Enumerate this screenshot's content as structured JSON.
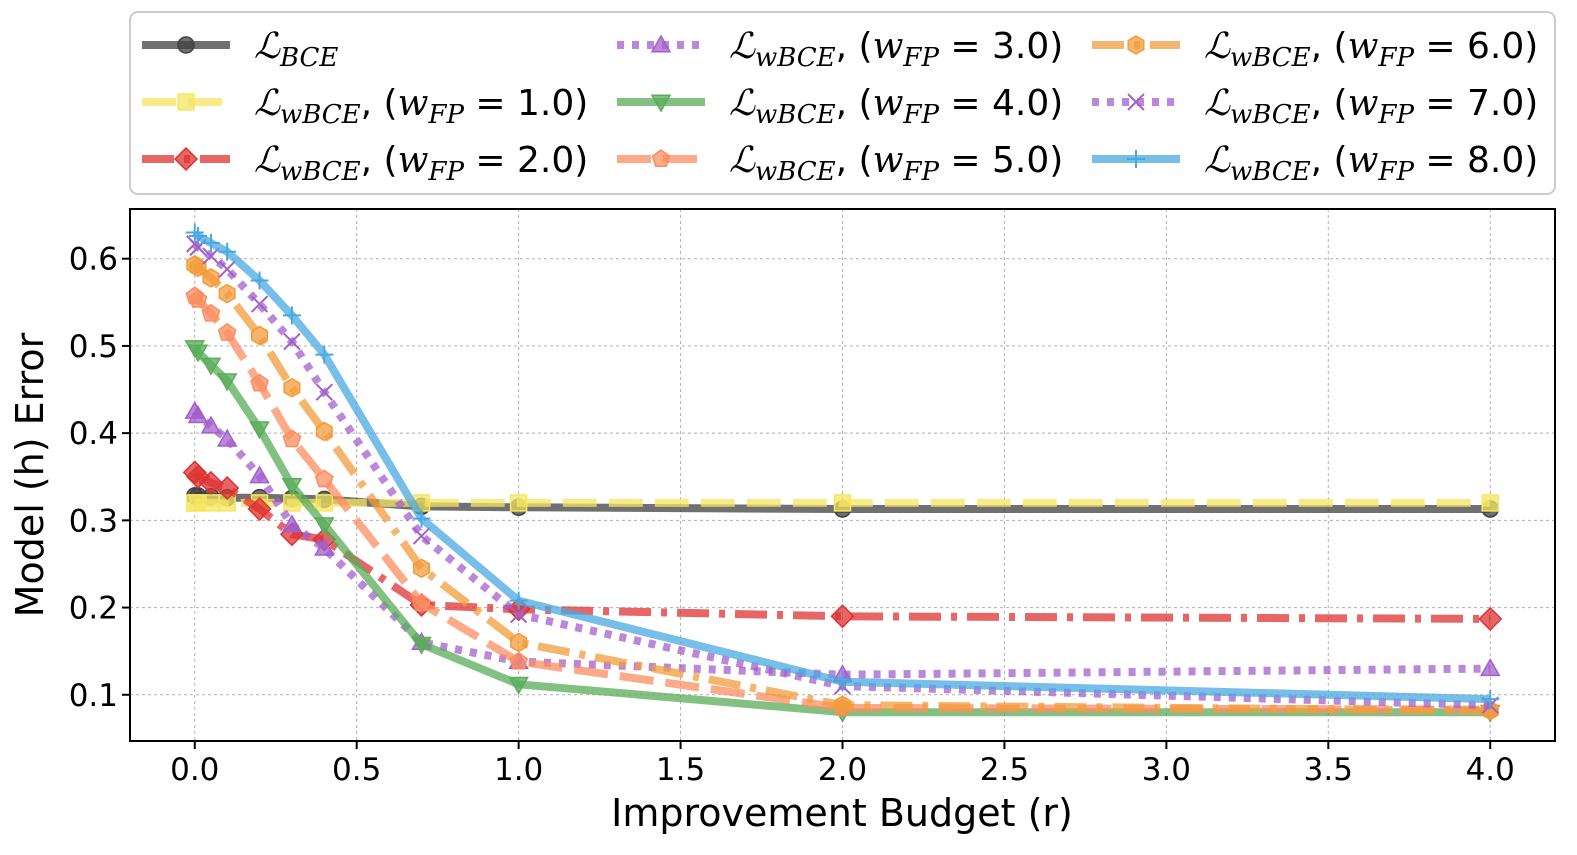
{
  "chart_data": {
    "type": "line",
    "title": "",
    "xlabel": "Improvement Budget (r)",
    "ylabel": "Model (h) Error",
    "xlim": [
      -0.2,
      4.2
    ],
    "ylim": [
      0.047,
      0.657
    ],
    "grid": true,
    "legend_position": "top (outside, 3 columns)",
    "xticks": [
      "0.0",
      "0.5",
      "1.0",
      "1.5",
      "2.0",
      "2.5",
      "3.0",
      "3.5",
      "4.0"
    ],
    "yticks": [
      "0.1",
      "0.2",
      "0.3",
      "0.4",
      "0.5",
      "0.6"
    ],
    "x": [
      0.0,
      0.01,
      0.05,
      0.1,
      0.2,
      0.3,
      0.4,
      0.7,
      1.0,
      2.0,
      4.0
    ],
    "series": [
      {
        "name": "LBCE",
        "legend_main": "ℒ",
        "legend_sub": "BCE",
        "legend_param": "",
        "color": "#404040",
        "dash": "",
        "marker": "circle",
        "values": [
          0.328,
          0.328,
          0.327,
          0.326,
          0.326,
          0.325,
          0.324,
          0.316,
          0.315,
          0.313,
          0.313
        ]
      },
      {
        "name": "LwBCE, (wFP = 1.0)",
        "legend_main": "ℒ",
        "legend_sub": "wBCE",
        "legend_param": "1.0",
        "color": "#f5e663",
        "dash": "34,12",
        "marker": "square",
        "values": [
          0.32,
          0.32,
          0.32,
          0.32,
          0.32,
          0.32,
          0.32,
          0.32,
          0.32,
          0.32,
          0.32
        ]
      },
      {
        "name": "LwBCE, (wFP = 2.0)",
        "legend_main": "ℒ",
        "legend_sub": "wBCE",
        "legend_param": "2.0",
        "color": "#dd3333",
        "dash": "32,10,6,10",
        "marker": "diamond",
        "values": [
          0.355,
          0.35,
          0.343,
          0.337,
          0.313,
          0.284,
          0.278,
          0.203,
          0.198,
          0.19,
          0.187
        ]
      },
      {
        "name": "LwBCE, (wFP = 3.0)",
        "legend_main": "ℒ",
        "legend_sub": "wBCE",
        "legend_param": "3.0",
        "color": "#a35fcc",
        "dash": "7,8",
        "marker": "triangle-up",
        "values": [
          0.425,
          0.42,
          0.408,
          0.393,
          0.351,
          0.295,
          0.268,
          0.16,
          0.138,
          0.123,
          0.13
        ]
      },
      {
        "name": "LwBCE, (wFP = 4.0)",
        "legend_main": "ℒ",
        "legend_sub": "wBCE",
        "legend_param": "4.0",
        "color": "#5aac5a",
        "dash": "",
        "marker": "triangle-down",
        "values": [
          0.498,
          0.493,
          0.478,
          0.46,
          0.405,
          0.34,
          0.295,
          0.158,
          0.112,
          0.08,
          0.08
        ]
      },
      {
        "name": "LwBCE, (wFP = 5.0)",
        "legend_main": "ℒ",
        "legend_sub": "wBCE",
        "legend_param": "5.0",
        "color": "#fc8d62",
        "dash": "34,12",
        "marker": "pentagon",
        "values": [
          0.557,
          0.553,
          0.537,
          0.515,
          0.457,
          0.393,
          0.347,
          0.205,
          0.138,
          0.085,
          0.083
        ]
      },
      {
        "name": "LwBCE, (wFP = 6.0)",
        "legend_main": "ℒ",
        "legend_sub": "wBCE",
        "legend_param": "6.0",
        "color": "#f39c3c",
        "dash": "32,10,6,10",
        "marker": "hexagon",
        "values": [
          0.593,
          0.59,
          0.578,
          0.56,
          0.512,
          0.452,
          0.402,
          0.245,
          0.16,
          0.088,
          0.082
        ]
      },
      {
        "name": "LwBCE, (wFP = 7.0)",
        "legend_main": "ℒ",
        "legend_sub": "wBCE",
        "legend_param": "7.0",
        "color": "#a35fcc",
        "dash": "7,8",
        "marker": "x",
        "values": [
          0.617,
          0.613,
          0.603,
          0.588,
          0.548,
          0.505,
          0.447,
          0.282,
          0.192,
          0.11,
          0.088
        ]
      },
      {
        "name": "LwBCE, (wFP = 8.0)",
        "legend_main": "ℒ",
        "legend_sub": "wBCE",
        "legend_param": "8.0",
        "color": "#4aa8e0",
        "dash": "",
        "marker": "plus",
        "values": [
          0.63,
          0.626,
          0.618,
          0.608,
          0.575,
          0.535,
          0.49,
          0.302,
          0.208,
          0.115,
          0.095
        ]
      }
    ]
  }
}
